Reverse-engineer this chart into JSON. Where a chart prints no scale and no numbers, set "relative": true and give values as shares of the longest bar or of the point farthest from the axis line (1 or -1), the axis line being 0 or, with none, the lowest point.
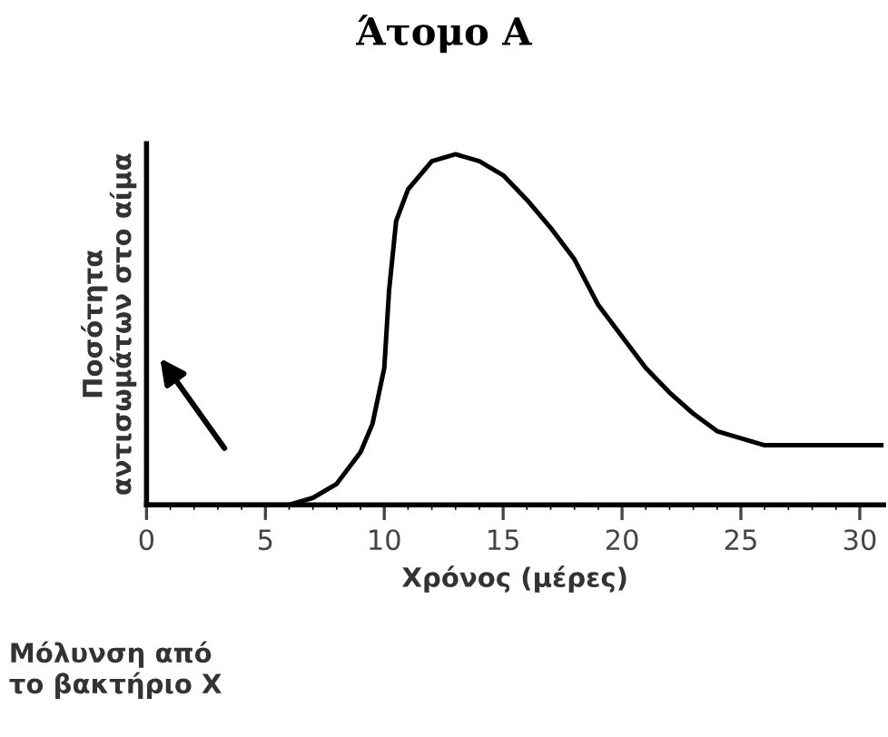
{
  "chart_data": {
    "type": "line",
    "title": "Άτομο Α",
    "xlabel": "Χρόνος (μέρες)",
    "ylabel": "Ποσότητα\nαντισωμάτων στο αίμα",
    "relative": true,
    "xlim": [
      0,
      31
    ],
    "xticks": [
      0,
      5,
      10,
      15,
      20,
      25,
      30
    ],
    "grid": false,
    "legend": false,
    "marker": "none",
    "line_style": "solid",
    "annotations": [
      "Μόλυνση από\nτο βακτήριο X"
    ],
    "series": [
      {
        "color": "#000000",
        "x": [
          0,
          1,
          2,
          3,
          4,
          5,
          6,
          7,
          8,
          9,
          9.5,
          10,
          10.2,
          10.5,
          11,
          12,
          13,
          14,
          15,
          16,
          17,
          18,
          19,
          20,
          21,
          22,
          23,
          24,
          25,
          26,
          27,
          28,
          29,
          30,
          31
        ],
        "values": [
          0,
          0,
          0,
          0,
          0,
          0,
          0,
          0.02,
          0.06,
          0.15,
          0.23,
          0.39,
          0.61,
          0.81,
          0.9,
          0.98,
          1.0,
          0.98,
          0.94,
          0.87,
          0.79,
          0.7,
          0.57,
          0.48,
          0.39,
          0.32,
          0.26,
          0.21,
          0.19,
          0.17,
          0.17,
          0.17,
          0.17,
          0.17,
          0.17
        ]
      }
    ]
  }
}
